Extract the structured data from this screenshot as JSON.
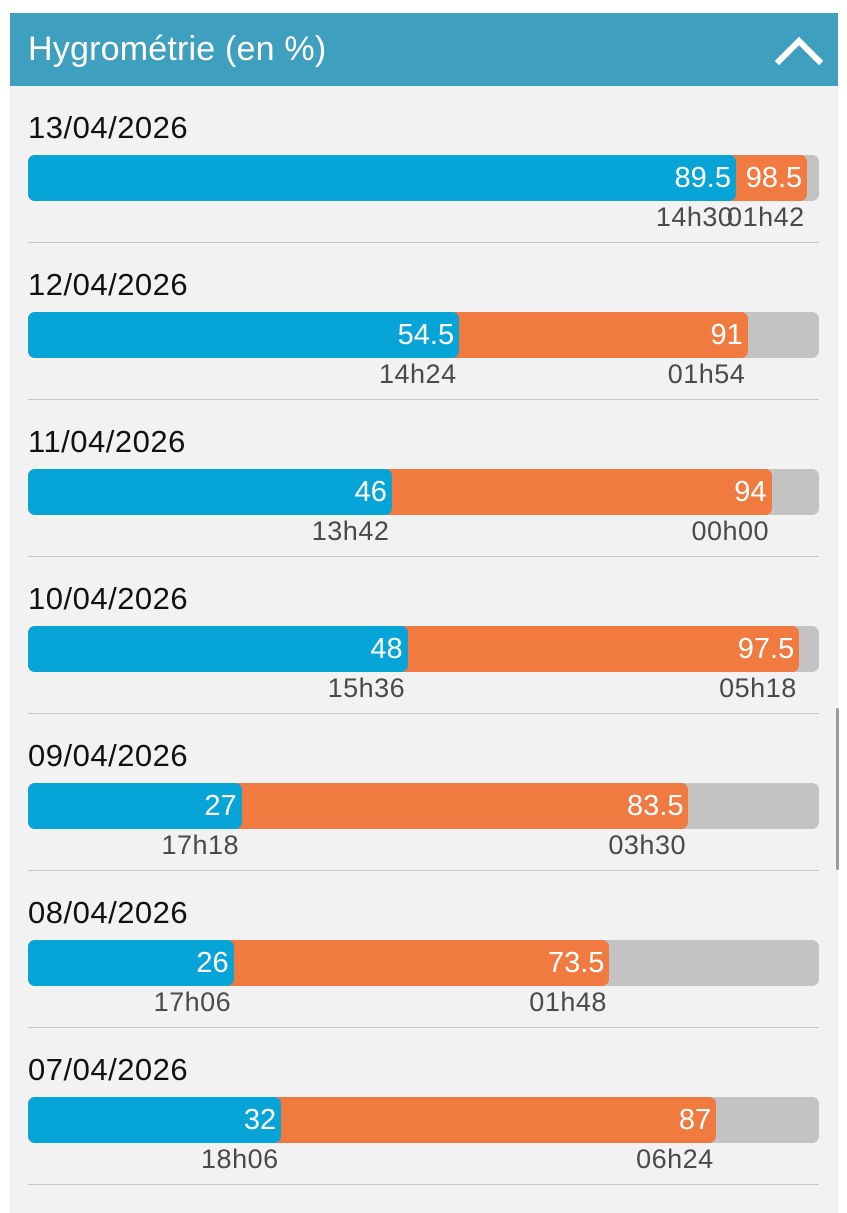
{
  "header": {
    "title": "Hygrométrie (en %)",
    "toggle_icon": "chevron-up-icon"
  },
  "colors": {
    "header": "#3f9fbe",
    "min": "#07a5d7",
    "max": "#f07a40",
    "track": "#c3c3c3"
  },
  "rows": [
    {
      "date": "13/04/2026",
      "min": "89.5",
      "min_time": "14h30",
      "max": "98.5",
      "max_time": "01h42"
    },
    {
      "date": "12/04/2026",
      "min": "54.5",
      "min_time": "14h24",
      "max": "91",
      "max_time": "01h54"
    },
    {
      "date": "11/04/2026",
      "min": "46",
      "min_time": "13h42",
      "max": "94",
      "max_time": "00h00"
    },
    {
      "date": "10/04/2026",
      "min": "48",
      "min_time": "15h36",
      "max": "97.5",
      "max_time": "05h18"
    },
    {
      "date": "09/04/2026",
      "min": "27",
      "min_time": "17h18",
      "max": "83.5",
      "max_time": "03h30"
    },
    {
      "date": "08/04/2026",
      "min": "26",
      "min_time": "17h06",
      "max": "73.5",
      "max_time": "01h48"
    },
    {
      "date": "07/04/2026",
      "min": "32",
      "min_time": "18h06",
      "max": "87",
      "max_time": "06h24"
    }
  ]
}
